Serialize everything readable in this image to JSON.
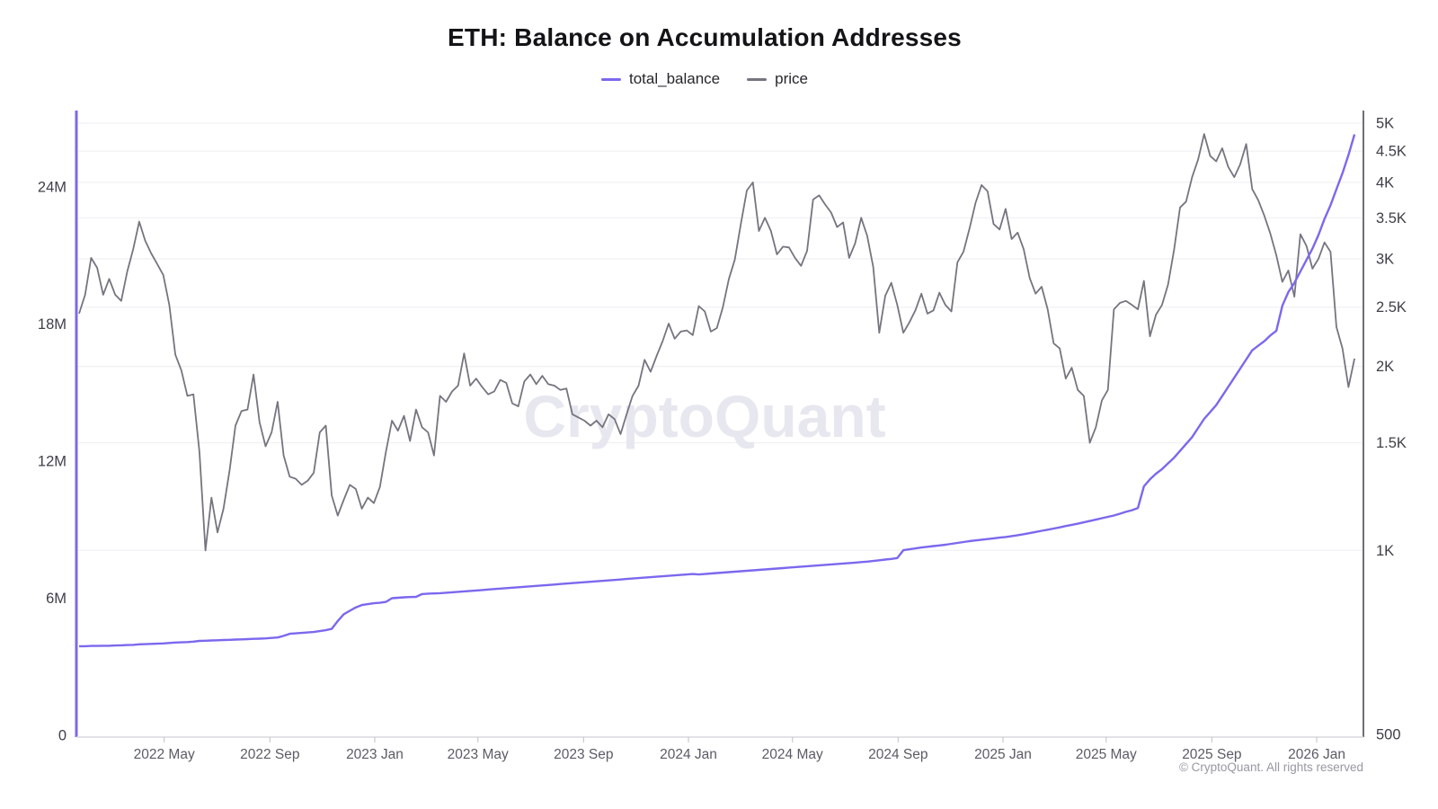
{
  "chart_data": {
    "type": "line",
    "title": "ETH: Balance on Accumulation Addresses",
    "watermark": "CryptoQuant",
    "copyright": "© CryptoQuant. All rights reserved",
    "legend": [
      {
        "name": "total_balance",
        "color": "#7b68ee"
      },
      {
        "name": "price",
        "color": "#76747f"
      }
    ],
    "x_axis": {
      "start_date": "2022-01-22",
      "end_date": "2026-02-17",
      "total_days": 1487,
      "point_interval_days": 7,
      "ticks": [
        {
          "label": "2022 May",
          "day": 99
        },
        {
          "label": "2022 Sep",
          "day": 222
        },
        {
          "label": "2023 Jan",
          "day": 344
        },
        {
          "label": "2023 May",
          "day": 464
        },
        {
          "label": "2023 Sep",
          "day": 587
        },
        {
          "label": "2024 Jan",
          "day": 709
        },
        {
          "label": "2024 May",
          "day": 830
        },
        {
          "label": "2024 Sep",
          "day": 953
        },
        {
          "label": "2025 Jan",
          "day": 1075
        },
        {
          "label": "2025 May",
          "day": 1195
        },
        {
          "label": "2025 Sep",
          "day": 1318
        },
        {
          "label": "2026 Jan",
          "day": 1440
        }
      ]
    },
    "y_left": {
      "scale": "linear",
      "unit": "millions ETH",
      "range_millions": [
        0,
        27.4
      ],
      "ticks": [
        {
          "label": "0",
          "value": 0
        },
        {
          "label": "6M",
          "value": 6
        },
        {
          "label": "12M",
          "value": 12
        },
        {
          "label": "18M",
          "value": 18
        },
        {
          "label": "24M",
          "value": 24
        }
      ]
    },
    "y_right": {
      "scale": "log",
      "unit": "USD",
      "range": [
        500,
        5000
      ],
      "gridlines": [
        1000,
        1500,
        2000,
        2500,
        3000,
        3500,
        4000,
        4500,
        5000
      ],
      "ticks": [
        {
          "label": "500",
          "value": 500
        },
        {
          "label": "1K",
          "value": 1000
        },
        {
          "label": "1.5K",
          "value": 1500
        },
        {
          "label": "2K",
          "value": 2000
        },
        {
          "label": "2.5K",
          "value": 2500
        },
        {
          "label": "3K",
          "value": 3000
        },
        {
          "label": "3.5K",
          "value": 3500
        },
        {
          "label": "4K",
          "value": 4000
        },
        {
          "label": "4.5K",
          "value": 4500
        },
        {
          "label": "5K",
          "value": 5000
        }
      ]
    },
    "series": {
      "price_usd": [
        2440,
        2620,
        3010,
        2900,
        2620,
        2780,
        2620,
        2560,
        2860,
        3110,
        3450,
        3210,
        3060,
        2940,
        2820,
        2520,
        2090,
        1970,
        1790,
        1800,
        1450,
        1000,
        1220,
        1070,
        1170,
        1350,
        1600,
        1690,
        1700,
        1940,
        1620,
        1480,
        1560,
        1750,
        1430,
        1320,
        1310,
        1280,
        1300,
        1340,
        1560,
        1600,
        1230,
        1140,
        1210,
        1280,
        1260,
        1170,
        1220,
        1195,
        1270,
        1450,
        1630,
        1570,
        1660,
        1510,
        1700,
        1590,
        1560,
        1430,
        1790,
        1750,
        1820,
        1860,
        2100,
        1860,
        1910,
        1850,
        1800,
        1820,
        1900,
        1880,
        1740,
        1720,
        1890,
        1940,
        1870,
        1930,
        1870,
        1860,
        1830,
        1840,
        1670,
        1650,
        1630,
        1600,
        1630,
        1590,
        1670,
        1640,
        1550,
        1670,
        1790,
        1860,
        2050,
        1960,
        2080,
        2200,
        2350,
        2220,
        2280,
        2290,
        2250,
        2510,
        2460,
        2280,
        2310,
        2500,
        2780,
        2990,
        3420,
        3880,
        4000,
        3330,
        3500,
        3330,
        3050,
        3140,
        3130,
        3010,
        2920,
        3090,
        3750,
        3810,
        3680,
        3570,
        3380,
        3440,
        3010,
        3180,
        3500,
        3270,
        2910,
        2270,
        2610,
        2740,
        2520,
        2270,
        2360,
        2470,
        2630,
        2440,
        2470,
        2640,
        2520,
        2460,
        2960,
        3080,
        3360,
        3700,
        3960,
        3870,
        3420,
        3350,
        3620,
        3230,
        3310,
        3110,
        2790,
        2630,
        2700,
        2480,
        2180,
        2140,
        1910,
        1990,
        1830,
        1790,
        1500,
        1590,
        1760,
        1830,
        2480,
        2540,
        2560,
        2520,
        2480,
        2760,
        2240,
        2430,
        2520,
        2720,
        3100,
        3640,
        3720,
        4080,
        4360,
        4800,
        4420,
        4330,
        4550,
        4240,
        4080,
        4280,
        4620,
        3900,
        3740,
        3530,
        3300,
        3040,
        2750,
        2870,
        2600,
        3290,
        3150,
        2890,
        3000,
        3190,
        3080,
        2320,
        2140,
        1850,
        2060
      ],
      "total_balance_millions": [
        3.9,
        3.9,
        3.91,
        3.91,
        3.92,
        3.92,
        3.93,
        3.94,
        3.95,
        3.96,
        3.98,
        3.99,
        4.0,
        4.01,
        4.02,
        4.04,
        4.06,
        4.07,
        4.08,
        4.1,
        4.13,
        4.14,
        4.15,
        4.16,
        4.17,
        4.18,
        4.19,
        4.2,
        4.21,
        4.22,
        4.23,
        4.24,
        4.26,
        4.28,
        4.35,
        4.44,
        4.46,
        4.48,
        4.5,
        4.52,
        4.56,
        4.6,
        4.66,
        5.0,
        5.3,
        5.45,
        5.6,
        5.7,
        5.74,
        5.78,
        5.8,
        5.84,
        6.0,
        6.02,
        6.04,
        6.05,
        6.06,
        6.18,
        6.2,
        6.21,
        6.22,
        6.24,
        6.26,
        6.28,
        6.3,
        6.32,
        6.34,
        6.36,
        6.38,
        6.4,
        6.42,
        6.44,
        6.46,
        6.48,
        6.5,
        6.52,
        6.54,
        6.56,
        6.58,
        6.6,
        6.62,
        6.64,
        6.66,
        6.68,
        6.7,
        6.72,
        6.74,
        6.76,
        6.78,
        6.8,
        6.82,
        6.84,
        6.86,
        6.88,
        6.9,
        6.92,
        6.94,
        6.96,
        6.98,
        7.0,
        7.02,
        7.04,
        7.06,
        7.04,
        7.06,
        7.08,
        7.1,
        7.12,
        7.14,
        7.16,
        7.18,
        7.2,
        7.22,
        7.24,
        7.26,
        7.28,
        7.3,
        7.32,
        7.34,
        7.36,
        7.38,
        7.4,
        7.42,
        7.44,
        7.46,
        7.48,
        7.5,
        7.52,
        7.54,
        7.56,
        7.58,
        7.6,
        7.63,
        7.66,
        7.69,
        7.72,
        7.76,
        8.1,
        8.14,
        8.18,
        8.22,
        8.25,
        8.28,
        8.31,
        8.34,
        8.38,
        8.42,
        8.46,
        8.5,
        8.53,
        8.56,
        8.59,
        8.62,
        8.65,
        8.68,
        8.72,
        8.76,
        8.8,
        8.85,
        8.9,
        8.95,
        9.0,
        9.05,
        9.1,
        9.16,
        9.21,
        9.26,
        9.32,
        9.38,
        9.44,
        9.5,
        9.56,
        9.62,
        9.7,
        9.78,
        9.85,
        9.95,
        10.9,
        11.2,
        11.45,
        11.65,
        11.9,
        12.15,
        12.45,
        12.75,
        13.05,
        13.45,
        13.85,
        14.15,
        14.45,
        14.85,
        15.25,
        15.65,
        16.05,
        16.45,
        16.85,
        17.05,
        17.25,
        17.5,
        17.7,
        18.8,
        19.4,
        19.8,
        20.3,
        20.8,
        21.3,
        21.9,
        22.6,
        23.2,
        23.9,
        24.6,
        25.4,
        26.3
      ]
    }
  }
}
